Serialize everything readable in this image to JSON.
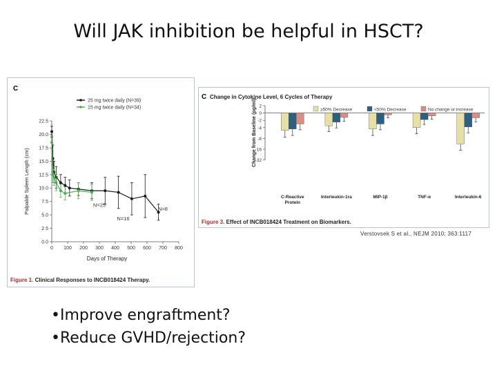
{
  "slide": {
    "title": "Will JAK inhibition be helpful in HSCT?",
    "citation": "Verstovsek S et al., NEJM 2010; 363:1117",
    "bullets": [
      "•Improve engraftment?",
      "•Reduce GVHD/rejection?"
    ]
  },
  "figure1": {
    "panel_letter": "C",
    "caption_label": "Figure 1.",
    "caption_text": "Clinical Responses to INCB018424 Therapy."
  },
  "figure3": {
    "panel_letter": "C",
    "panel_title": "Change in Cytokine Level, 6 Cycles of Therapy",
    "caption_label": "Figure 3.",
    "caption_text": "Effect of INCB018424 Treatment on Biomarkers."
  },
  "colors": {
    "black_series": "#1a1a1a",
    "green_series": "#4caf50",
    "bar_ge50": "#e6e0a6",
    "bar_lt50": "#2d5f7e",
    "bar_nochange": "#d98e85",
    "caption_label": "#b22a2a",
    "frame": "#b9c3d6"
  },
  "chart_data": [
    {
      "type": "line",
      "xlabel": "Days of Therapy",
      "ylabel": "Palpable Spleen Length (cm)",
      "xlim": [
        0,
        800
      ],
      "ylim": [
        0,
        22.5
      ],
      "xticks": [
        0,
        100,
        200,
        300,
        400,
        500,
        600,
        700,
        800
      ],
      "yticks": [
        0.0,
        2.5,
        5.0,
        7.5,
        10.0,
        12.5,
        15.0,
        17.5,
        20.0,
        22.5
      ],
      "legend_position": "top",
      "series": [
        {
          "name": "25 mg twice daily (N=39)",
          "color": "#1a1a1a",
          "x": [
            0,
            7,
            14,
            28,
            56,
            84,
            112,
            168,
            252,
            336,
            420,
            504,
            588,
            672
          ],
          "y": [
            20.5,
            15.5,
            13.0,
            12.0,
            11.0,
            10.5,
            10.0,
            9.8,
            9.5,
            9.5,
            9.2,
            8.0,
            8.5,
            5.5
          ],
          "err": [
            1.0,
            2.5,
            2.0,
            2.0,
            1.5,
            1.5,
            1.5,
            1.2,
            1.5,
            2.5,
            3.0,
            3.0,
            4.0,
            1.5
          ]
        },
        {
          "name": "15 mg twice daily (N=34)",
          "color": "#4caf50",
          "x": [
            0,
            7,
            14,
            28,
            56,
            84,
            168,
            252
          ],
          "y": [
            18.5,
            12.5,
            12.0,
            11.0,
            9.5,
            9.0,
            9.5,
            9.2
          ],
          "err": [
            1.2,
            1.5,
            1.5,
            1.5,
            1.2,
            1.2,
            1.5,
            1.5
          ]
        }
      ],
      "annotations": [
        {
          "text": "N=25",
          "x": 300,
          "y": 6.5
        },
        {
          "text": "N=16",
          "x": 450,
          "y": 4.0
        },
        {
          "text": "N=8",
          "x": 700,
          "y": 5.8
        }
      ]
    },
    {
      "type": "bar",
      "ylabel": "Change from Baseline (pg/ml)",
      "yticks": [
        2,
        0,
        -2,
        -4,
        -8,
        -16,
        -32
      ],
      "categories": [
        "C-Reactive Protein",
        "Interleukin-1ra",
        "MIP-1β",
        "TNF-α",
        "Interleukin-6"
      ],
      "legend_position": "top",
      "series": [
        {
          "name": "≥50% Decrease",
          "color": "#e6e0a6",
          "values": [
            -5,
            -3.5,
            -4.5,
            -4,
            -12
          ]
        },
        {
          "name": "<50% Decrease",
          "color": "#2d5f7e",
          "values": [
            -4.5,
            -2.5,
            -3,
            -1.8,
            -3.8
          ]
        },
        {
          "name": "No change or increase",
          "color": "#d98e85",
          "values": [
            -3,
            -1.2,
            -0.5,
            -0.8,
            -1.3
          ]
        }
      ]
    }
  ]
}
